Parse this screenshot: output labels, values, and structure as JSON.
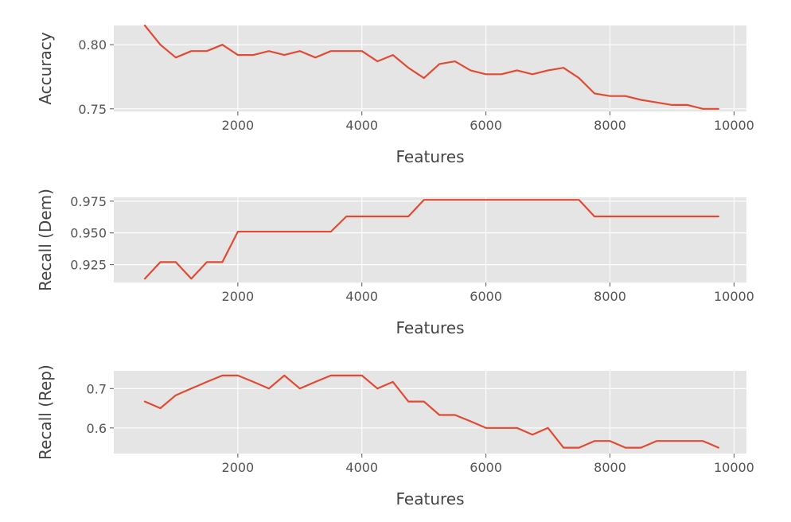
{
  "chart_data": [
    {
      "type": "line",
      "title": "",
      "xlabel": "Features",
      "ylabel": "Accuracy",
      "xlim": [
        0,
        10200
      ],
      "ylim": [
        0.748,
        0.815
      ],
      "xticks": [
        2000,
        4000,
        6000,
        8000,
        10000
      ],
      "xtick_labels": [
        "2000",
        "4000",
        "6000",
        "8000",
        "10000"
      ],
      "yticks": [
        0.75,
        0.8
      ],
      "ytick_labels": [
        "0.75",
        "0.80"
      ],
      "grid": true,
      "series": [
        {
          "name": "Accuracy",
          "color": "#e24a33",
          "x": [
            500,
            750,
            1000,
            1250,
            1500,
            1750,
            2000,
            2250,
            2500,
            2750,
            3000,
            3250,
            3500,
            3750,
            4000,
            4250,
            4500,
            4750,
            5000,
            5250,
            5500,
            5750,
            6000,
            6250,
            6500,
            6750,
            7000,
            7250,
            7500,
            7750,
            8000,
            8250,
            8500,
            8750,
            9000,
            9250,
            9500,
            9750
          ],
          "y": [
            0.815,
            0.8,
            0.79,
            0.795,
            0.795,
            0.8,
            0.792,
            0.792,
            0.795,
            0.792,
            0.795,
            0.79,
            0.795,
            0.795,
            0.795,
            0.787,
            0.792,
            0.782,
            0.774,
            0.785,
            0.787,
            0.78,
            0.777,
            0.777,
            0.78,
            0.777,
            0.78,
            0.782,
            0.774,
            0.762,
            0.76,
            0.76,
            0.757,
            0.755,
            0.753,
            0.753,
            0.75,
            0.75
          ]
        }
      ]
    },
    {
      "type": "line",
      "title": "",
      "xlabel": "Features",
      "ylabel": "Recall (Dem)",
      "xlim": [
        0,
        10200
      ],
      "ylim": [
        0.911,
        0.978
      ],
      "xticks": [
        2000,
        4000,
        6000,
        8000,
        10000
      ],
      "xtick_labels": [
        "2000",
        "4000",
        "6000",
        "8000",
        "10000"
      ],
      "yticks": [
        0.925,
        0.95,
        0.975
      ],
      "ytick_labels": [
        "0.925",
        "0.950",
        "0.975"
      ],
      "grid": true,
      "series": [
        {
          "name": "Recall (Dem)",
          "color": "#e24a33",
          "x": [
            500,
            750,
            1000,
            1250,
            1500,
            1750,
            2000,
            2250,
            2500,
            2750,
            3000,
            3250,
            3500,
            3750,
            4000,
            4250,
            4500,
            4750,
            5000,
            5250,
            5500,
            5750,
            6000,
            6250,
            6500,
            6750,
            7000,
            7250,
            7500,
            7750,
            8000,
            8250,
            8500,
            8750,
            9000,
            9250,
            9500,
            9750
          ],
          "y": [
            0.914,
            0.927,
            0.927,
            0.914,
            0.927,
            0.927,
            0.951,
            0.951,
            0.951,
            0.951,
            0.951,
            0.951,
            0.951,
            0.963,
            0.963,
            0.963,
            0.963,
            0.963,
            0.976,
            0.976,
            0.976,
            0.976,
            0.976,
            0.976,
            0.976,
            0.976,
            0.976,
            0.976,
            0.976,
            0.963,
            0.963,
            0.963,
            0.963,
            0.963,
            0.963,
            0.963,
            0.963,
            0.963
          ]
        }
      ]
    },
    {
      "type": "line",
      "title": "",
      "xlabel": "Features",
      "ylabel": "Recall (Rep)",
      "xlim": [
        0,
        10200
      ],
      "ylim": [
        0.535,
        0.745
      ],
      "xticks": [
        2000,
        4000,
        6000,
        8000,
        10000
      ],
      "xtick_labels": [
        "2000",
        "4000",
        "6000",
        "8000",
        "10000"
      ],
      "yticks": [
        0.6,
        0.7
      ],
      "ytick_labels": [
        "0.6",
        "0.7"
      ],
      "grid": true,
      "series": [
        {
          "name": "Recall (Rep)",
          "color": "#e24a33",
          "x": [
            500,
            750,
            1000,
            1250,
            1500,
            1750,
            2000,
            2250,
            2500,
            2750,
            3000,
            3250,
            3500,
            3750,
            4000,
            4250,
            4500,
            4750,
            5000,
            5250,
            5500,
            5750,
            6000,
            6250,
            6500,
            6750,
            7000,
            7250,
            7500,
            7750,
            8000,
            8250,
            8500,
            8750,
            9000,
            9250,
            9500,
            9750
          ],
          "y": [
            0.667,
            0.65,
            0.683,
            0.7,
            0.717,
            0.733,
            0.733,
            0.717,
            0.7,
            0.733,
            0.7,
            0.717,
            0.733,
            0.733,
            0.733,
            0.7,
            0.717,
            0.667,
            0.667,
            0.633,
            0.633,
            0.617,
            0.6,
            0.6,
            0.6,
            0.583,
            0.6,
            0.55,
            0.55,
            0.567,
            0.567,
            0.55,
            0.55,
            0.567,
            0.567,
            0.567,
            0.567,
            0.55
          ]
        }
      ]
    }
  ]
}
